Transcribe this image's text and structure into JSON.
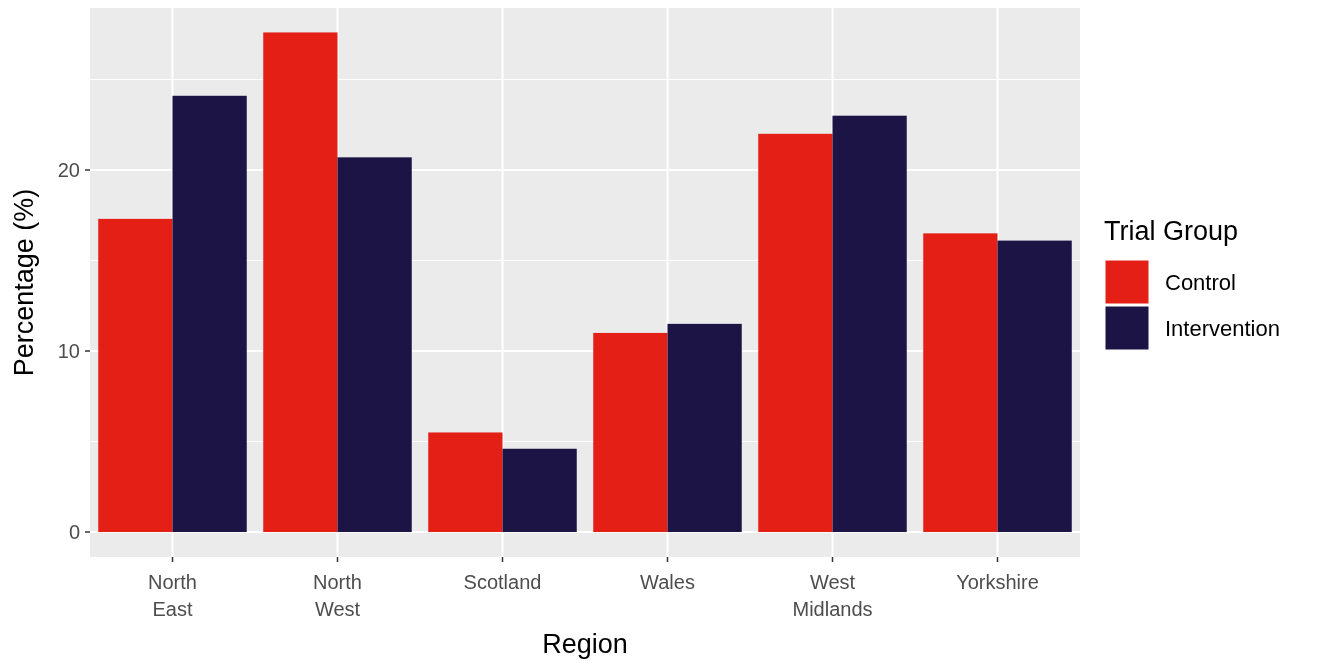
{
  "chart_data": {
    "type": "bar",
    "xlabel": "Region",
    "ylabel": "Percentage (%)",
    "legend_title": "Trial Group",
    "categories": [
      "North East",
      "North West",
      "Scotland",
      "Wales",
      "West Midlands",
      "Yorkshire"
    ],
    "series": [
      {
        "name": "Control",
        "color": "#e31f16",
        "values": [
          17.3,
          27.6,
          5.5,
          11.0,
          22.0,
          16.5
        ]
      },
      {
        "name": "Intervention",
        "color": "#1d1446",
        "values": [
          24.1,
          20.7,
          4.6,
          11.5,
          23.0,
          16.1
        ]
      }
    ],
    "ylim": [
      -1.38,
      28.95
    ],
    "yticks": [
      0,
      10,
      20
    ],
    "grid": true,
    "legend": "right"
  }
}
